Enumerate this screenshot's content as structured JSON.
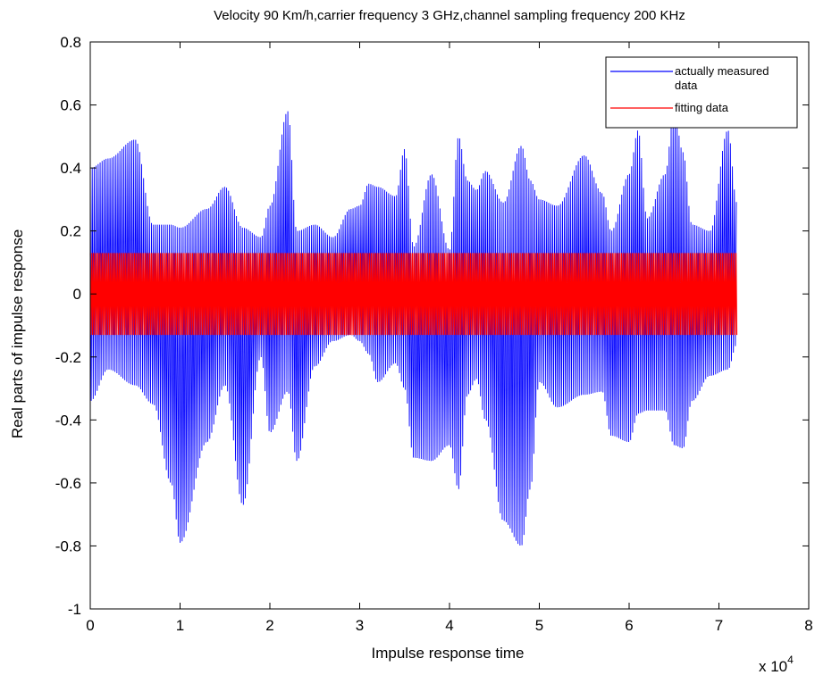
{
  "chart_data": {
    "type": "line",
    "title": "Velocity 90 Km/h,carrier frequency 3 GHz,channel sampling frequency 200 KHz",
    "xlabel": "Impulse response time",
    "ylabel": "Real parts of impulse response",
    "x_multiplier_label": {
      "base": "x 10",
      "exponent": "4"
    },
    "xlim": [
      0,
      80000
    ],
    "ylim": [
      -1,
      0.8
    ],
    "xticks": [
      0,
      10000,
      20000,
      30000,
      40000,
      50000,
      60000,
      70000,
      80000
    ],
    "xtick_labels": [
      "0",
      "1",
      "2",
      "3",
      "4",
      "5",
      "6",
      "7",
      "8"
    ],
    "yticks": [
      -1,
      -0.8,
      -0.6,
      -0.4,
      -0.2,
      0,
      0.2,
      0.4,
      0.6,
      0.8
    ],
    "ytick_labels": [
      "-1",
      "-0.8",
      "-0.6",
      "-0.4",
      "-0.2",
      "0",
      "0.2",
      "0.4",
      "0.6",
      "0.8"
    ],
    "grid": false,
    "legend_position": "top-right",
    "series": [
      {
        "name": "actually measured data",
        "color": "#0000ff",
        "style": "rapidly oscillating signal; upper and lower envelopes",
        "x_range": [
          0,
          72000
        ],
        "envelope_x": [
          0,
          2000,
          5000,
          7000,
          9000,
          10000,
          13000,
          15000,
          17000,
          19000,
          20000,
          22000,
          23000,
          25000,
          27000,
          29000,
          30000,
          31000,
          32000,
          34000,
          35000,
          36000,
          38000,
          40000,
          41000,
          42000,
          43000,
          44000,
          46000,
          48000,
          49000,
          50000,
          52000,
          55000,
          57000,
          58000,
          60000,
          61000,
          62000,
          64000,
          65000,
          66000,
          67000,
          69000,
          71000,
          72000
        ],
        "upper": [
          0.4,
          0.43,
          0.49,
          0.22,
          0.22,
          0.21,
          0.27,
          0.34,
          0.21,
          0.18,
          0.28,
          0.58,
          0.2,
          0.22,
          0.18,
          0.27,
          0.28,
          0.35,
          0.34,
          0.31,
          0.46,
          0.15,
          0.38,
          0.14,
          0.5,
          0.36,
          0.33,
          0.39,
          0.29,
          0.47,
          0.36,
          0.3,
          0.28,
          0.44,
          0.32,
          0.2,
          0.38,
          0.52,
          0.24,
          0.38,
          0.58,
          0.45,
          0.22,
          0.2,
          0.52,
          0.29
        ],
        "lower": [
          -0.34,
          -0.24,
          -0.29,
          -0.35,
          -0.6,
          -0.79,
          -0.47,
          -0.29,
          -0.67,
          -0.2,
          -0.44,
          -0.31,
          -0.53,
          -0.23,
          -0.15,
          -0.13,
          -0.15,
          -0.19,
          -0.28,
          -0.22,
          -0.3,
          -0.52,
          -0.53,
          -0.48,
          -0.62,
          -0.32,
          -0.27,
          -0.4,
          -0.72,
          -0.8,
          -0.62,
          -0.28,
          -0.36,
          -0.32,
          -0.31,
          -0.45,
          -0.47,
          -0.38,
          -0.37,
          -0.37,
          -0.48,
          -0.49,
          -0.34,
          -0.26,
          -0.24,
          -0.16
        ]
      },
      {
        "name": "fitting data",
        "color": "#ff0000",
        "style": "rapidly oscillating signal of constant amplitude",
        "x_range": [
          0,
          72000
        ],
        "amplitude": 0.13
      }
    ]
  }
}
